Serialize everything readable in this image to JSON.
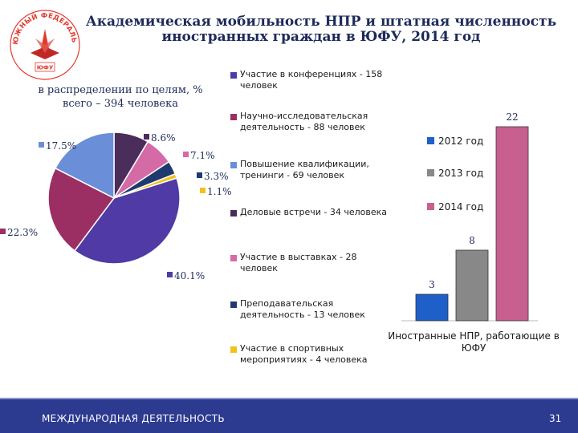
{
  "title_line1": "Академическая мобильность НПР и штатная численность",
  "title_line2": "иностранных граждан в ЮФУ, 2014 год",
  "logo": {
    "text": "ЮЖНЫЙ ФЕДЕРАЛЬНЫЙ УНИВЕРСИТЕТ",
    "badge": "ЮФУ"
  },
  "pie_subtitle_line1": "в распределении по целям, %",
  "pie_subtitle_line2": "всего – 394 человека",
  "footer": {
    "left": "МЕЖДУНАРОДНАЯ ДЕЯТЕЛЬНОСТЬ",
    "page": "31"
  },
  "chart_data": [
    {
      "type": "pie",
      "title": "в распределении по целям, % всего – 394 человека",
      "slices": [
        {
          "legend": "Участие в конференциях - 158 человек",
          "value": 40.1,
          "label": "40.1%",
          "color": "#4f3aa6"
        },
        {
          "legend": "Научно-исследовательская деятельность - 88 человек",
          "value": 22.3,
          "label": "22.3%",
          "color": "#9b2f63"
        },
        {
          "legend": "Повышение квалификации, тренинги - 69 человек",
          "value": 17.5,
          "label": "17.5%",
          "color": "#6a8fd8"
        },
        {
          "legend": "Деловые встречи - 34 человека",
          "value": 8.6,
          "label": "8.6%",
          "color": "#4a2d5a"
        },
        {
          "legend": "Участие в выставках - 28 человек",
          "value": 7.1,
          "label": "7.1%",
          "color": "#d46aa6"
        },
        {
          "legend": "Преподавательская деятельность - 13 человек",
          "value": 3.3,
          "label": "3.3%",
          "color": "#1f3a6e"
        },
        {
          "legend": "Участие в спортивных мероприятиях - 4 человека",
          "value": 1.1,
          "label": "1.1%",
          "color": "#f2c21a"
        }
      ]
    },
    {
      "type": "bar",
      "xlabel": "Иностранные НПР, работающие в ЮФУ",
      "series": [
        {
          "name": "2012 год",
          "value": 3,
          "color": "#1f5fc8"
        },
        {
          "name": "2013 год",
          "value": 8,
          "color": "#888888"
        },
        {
          "name": "2014 год",
          "value": 22,
          "color": "#c8608f"
        }
      ],
      "ylim": [
        0,
        22
      ]
    }
  ]
}
